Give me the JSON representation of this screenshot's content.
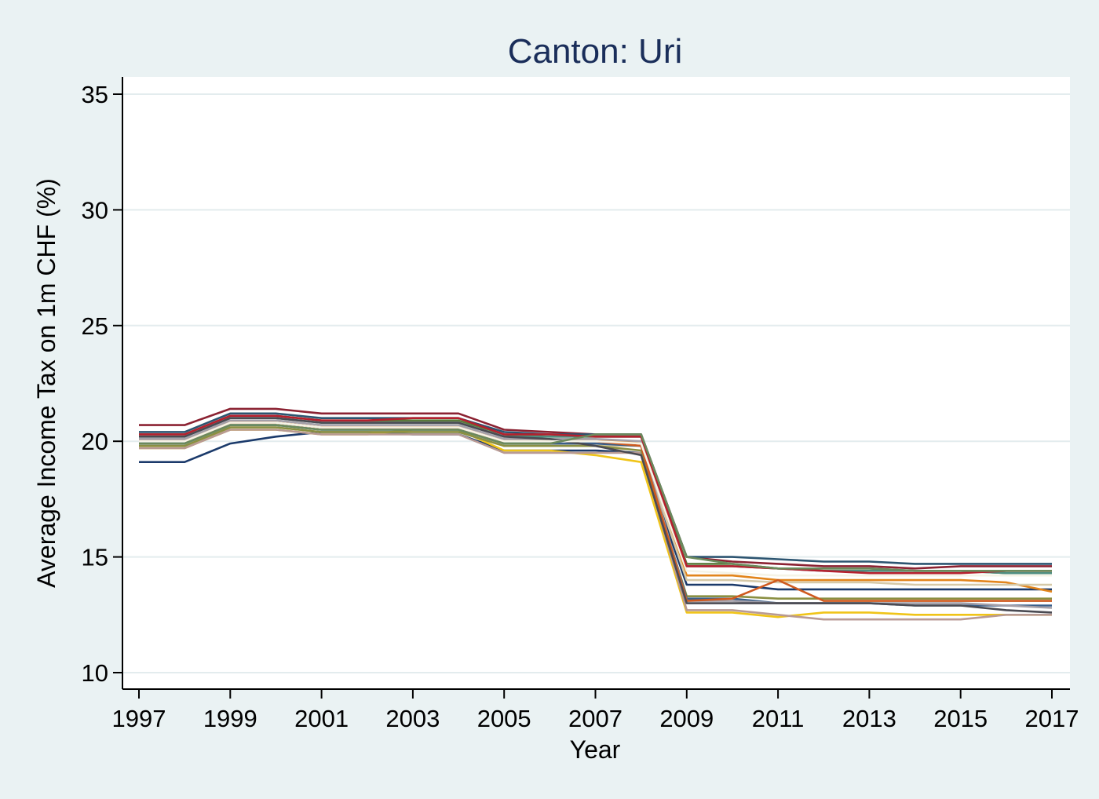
{
  "chart_data": {
    "type": "line",
    "title": "Canton: Uri",
    "xlabel": "Year",
    "ylabel": "Average Income Tax on 1m CHF (%)",
    "x": [
      1997,
      1998,
      1999,
      2000,
      2001,
      2002,
      2003,
      2004,
      2005,
      2006,
      2007,
      2008,
      2009,
      2010,
      2011,
      2012,
      2013,
      2014,
      2015,
      2016,
      2017
    ],
    "xticks": [
      1997,
      1999,
      2001,
      2003,
      2005,
      2007,
      2009,
      2011,
      2013,
      2015,
      2017
    ],
    "yticks": [
      10,
      15,
      20,
      25,
      30,
      35
    ],
    "xlim": [
      1997,
      2017
    ],
    "ylim": [
      10,
      35
    ],
    "grid": "horizontal",
    "legend": "none",
    "series": [
      {
        "color": "#8b2232",
        "values": [
          20.7,
          20.7,
          21.4,
          21.4,
          21.2,
          21.2,
          21.2,
          21.2,
          20.5,
          20.4,
          20.3,
          20.3,
          15.0,
          14.8,
          14.7,
          14.6,
          14.6,
          14.5,
          14.6,
          14.6,
          14.6
        ]
      },
      {
        "color": "#1b3a6b",
        "values": [
          19.1,
          19.1,
          19.9,
          20.2,
          20.4,
          20.4,
          20.3,
          20.3,
          19.6,
          19.6,
          19.6,
          19.5,
          13.8,
          13.8,
          13.6,
          13.6,
          13.6,
          13.6,
          13.6,
          13.6,
          13.6
        ]
      },
      {
        "color": "#e2851c",
        "values": [
          20.0,
          20.0,
          20.8,
          20.8,
          20.6,
          20.6,
          20.6,
          20.6,
          20.0,
          20.0,
          20.0,
          20.0,
          14.2,
          14.2,
          14.0,
          14.0,
          14.0,
          14.0,
          14.0,
          13.9,
          13.5
        ]
      },
      {
        "color": "#5a7a3c",
        "values": [
          20.3,
          20.3,
          21.1,
          21.1,
          20.9,
          20.9,
          20.9,
          20.9,
          20.3,
          20.2,
          20.2,
          20.2,
          14.7,
          14.7,
          14.5,
          14.5,
          14.5,
          14.4,
          14.4,
          14.3,
          14.3
        ]
      },
      {
        "color": "#d6c9a8",
        "values": [
          19.8,
          19.8,
          20.6,
          20.6,
          20.4,
          20.4,
          20.4,
          20.4,
          19.8,
          19.8,
          19.8,
          19.8,
          14.0,
          14.0,
          13.9,
          13.9,
          13.9,
          13.8,
          13.8,
          13.8,
          13.8
        ]
      },
      {
        "color": "#4e8e80",
        "values": [
          20.2,
          20.2,
          21.0,
          21.0,
          20.8,
          20.8,
          20.8,
          20.8,
          20.2,
          20.2,
          20.2,
          20.2,
          14.6,
          14.6,
          14.5,
          14.4,
          14.4,
          14.4,
          14.4,
          14.3,
          14.3
        ]
      },
      {
        "color": "#f0c418",
        "values": [
          19.7,
          19.7,
          20.5,
          20.5,
          20.3,
          20.3,
          20.5,
          20.5,
          19.6,
          19.6,
          19.4,
          19.1,
          12.6,
          12.6,
          12.4,
          12.6,
          12.6,
          12.5,
          12.5,
          12.5,
          12.5
        ]
      },
      {
        "color": "#b89a94",
        "values": [
          19.7,
          19.7,
          20.5,
          20.5,
          20.3,
          20.3,
          20.3,
          20.3,
          19.5,
          19.5,
          19.5,
          19.5,
          12.7,
          12.7,
          12.5,
          12.3,
          12.3,
          12.3,
          12.3,
          12.5,
          12.5
        ]
      },
      {
        "color": "#8a8f42",
        "values": [
          19.8,
          19.8,
          20.6,
          20.6,
          20.4,
          20.4,
          20.4,
          20.4,
          19.8,
          19.8,
          19.8,
          19.6,
          13.3,
          13.3,
          13.2,
          13.2,
          13.2,
          13.2,
          13.2,
          13.2,
          13.2
        ]
      },
      {
        "color": "#3a5f8a",
        "values": [
          19.9,
          19.9,
          20.7,
          20.7,
          20.5,
          20.5,
          20.5,
          20.5,
          19.9,
          19.9,
          19.9,
          19.8,
          13.2,
          13.2,
          13.0,
          13.0,
          13.0,
          12.9,
          12.9,
          12.9,
          12.9
        ]
      },
      {
        "color": "#a39fa8",
        "values": [
          20.1,
          20.1,
          20.9,
          20.9,
          20.7,
          20.7,
          20.7,
          20.7,
          20.1,
          20.1,
          20.1,
          20.0,
          13.1,
          13.1,
          13.0,
          13.0,
          13.0,
          13.0,
          13.0,
          12.9,
          12.8
        ]
      },
      {
        "color": "#cf5a1f",
        "values": [
          20.0,
          20.0,
          20.8,
          20.8,
          20.6,
          20.6,
          20.6,
          20.6,
          20.0,
          20.0,
          20.0,
          19.8,
          13.1,
          13.2,
          14.0,
          13.1,
          13.1,
          13.1,
          13.1,
          13.1,
          13.1
        ]
      },
      {
        "color": "#2c5470",
        "values": [
          20.4,
          20.4,
          21.2,
          21.2,
          21.0,
          21.0,
          21.0,
          21.0,
          20.4,
          20.3,
          20.3,
          20.3,
          15.0,
          15.0,
          14.9,
          14.8,
          14.8,
          14.7,
          14.7,
          14.7,
          14.7
        ]
      },
      {
        "color": "#4a4a52",
        "values": [
          20.2,
          20.2,
          21.0,
          21.0,
          20.8,
          20.8,
          20.8,
          20.8,
          20.2,
          20.1,
          19.8,
          19.4,
          13.0,
          13.0,
          13.0,
          13.0,
          13.0,
          12.9,
          12.9,
          12.7,
          12.6
        ]
      },
      {
        "color": "#f5f3e6",
        "values": [
          20.0,
          20.0,
          20.8,
          20.8,
          20.6,
          20.6,
          20.6,
          20.6,
          20.0,
          20.0,
          20.0,
          19.9,
          14.4,
          14.3,
          14.2,
          14.2,
          14.2,
          14.2,
          14.2,
          14.2,
          14.2
        ]
      },
      {
        "color": "#b5202e",
        "values": [
          20.3,
          20.3,
          21.1,
          21.1,
          20.9,
          20.9,
          21.0,
          21.0,
          20.3,
          20.3,
          20.2,
          20.2,
          14.6,
          14.6,
          14.5,
          14.4,
          14.3,
          14.3,
          14.3,
          14.4,
          14.4
        ]
      },
      {
        "color": "#6b8a5c",
        "values": [
          19.9,
          19.9,
          20.7,
          20.7,
          20.5,
          20.5,
          20.5,
          20.5,
          19.9,
          19.9,
          20.3,
          20.3,
          15.0,
          14.7,
          14.5,
          14.5,
          14.5,
          14.4,
          14.4,
          14.4,
          14.4
        ]
      }
    ]
  }
}
